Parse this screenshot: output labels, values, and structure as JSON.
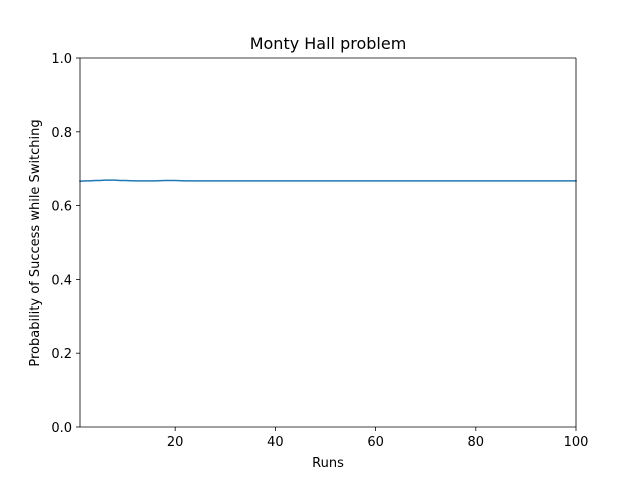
{
  "chart_data": {
    "type": "line",
    "title": "Monty Hall problem",
    "xlabel": "Runs",
    "ylabel": "Probability of Success while Switching",
    "xlim": [
      1,
      100
    ],
    "ylim": [
      0,
      1.0
    ],
    "x_ticks": [
      20,
      40,
      60,
      80,
      100
    ],
    "x_tick_labels": [
      "20",
      "40",
      "60",
      "80",
      "100"
    ],
    "y_ticks": [
      0,
      0.2,
      0.4,
      0.6,
      0.8,
      1.0
    ],
    "y_tick_labels": [
      "0.0",
      "0.2",
      "0.4",
      "0.6",
      "0.8",
      "1.0"
    ],
    "grid": false,
    "series": [
      {
        "color": "#1f77b4",
        "x": [
          1,
          2,
          3,
          4,
          5,
          6,
          7,
          8,
          9,
          10,
          12,
          14,
          16,
          18,
          20,
          22,
          25,
          30,
          35,
          40,
          45,
          50,
          55,
          60,
          65,
          70,
          75,
          80,
          85,
          90,
          95,
          100
        ],
        "y": [
          0.666,
          0.667,
          0.667,
          0.668,
          0.668,
          0.669,
          0.669,
          0.669,
          0.668,
          0.668,
          0.667,
          0.667,
          0.667,
          0.668,
          0.668,
          0.667,
          0.667,
          0.667,
          0.667,
          0.667,
          0.667,
          0.667,
          0.667,
          0.667,
          0.667,
          0.667,
          0.667,
          0.667,
          0.667,
          0.667,
          0.667,
          0.667
        ]
      }
    ]
  }
}
